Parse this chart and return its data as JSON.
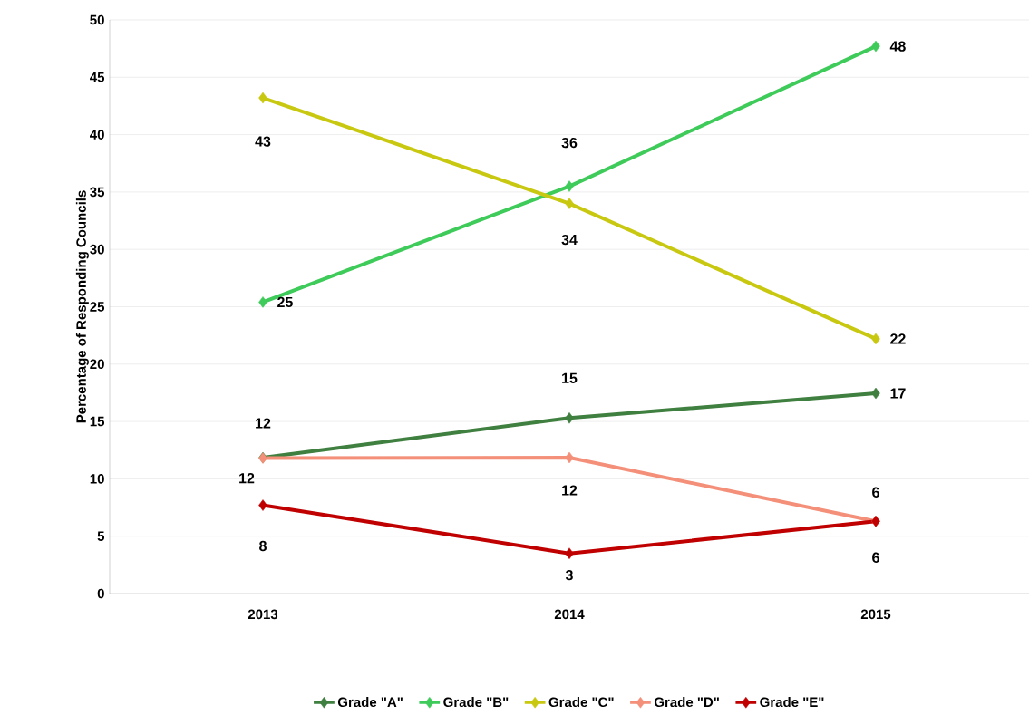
{
  "chart_data": {
    "type": "line",
    "ylabel": "Percentage of Responding Councils",
    "categories": [
      "2013",
      "2014",
      "2015"
    ],
    "series": [
      {
        "name": "Grade \"A\"",
        "color": "#3f7f3f",
        "values": [
          11.85,
          15.3,
          17.45
        ],
        "value_labels": [
          "12",
          "15",
          "17"
        ]
      },
      {
        "name": "Grade \"B\"",
        "color": "#3ecb5a",
        "values": [
          25.4,
          35.5,
          47.7
        ],
        "value_labels": [
          "25",
          "36",
          "48"
        ]
      },
      {
        "name": "Grade \"C\"",
        "color": "#c9c811",
        "values": [
          43.2,
          34.0,
          22.2
        ],
        "value_labels": [
          "43",
          "34",
          "22"
        ]
      },
      {
        "name": "Grade \"D\"",
        "color": "#f4907a",
        "values": [
          11.8,
          11.85,
          6.3
        ],
        "value_labels": [
          "12",
          "12",
          "6"
        ]
      },
      {
        "name": "Grade \"E\"",
        "color": "#c00000",
        "values": [
          7.7,
          3.5,
          6.3
        ],
        "value_labels": [
          "8",
          "3",
          "6"
        ]
      }
    ],
    "ylim": [
      0,
      50
    ],
    "yticks": [
      0,
      5,
      10,
      15,
      20,
      25,
      30,
      35,
      40,
      45,
      50
    ],
    "grid": "y",
    "legend": "bottom",
    "marker": "diamond",
    "line_style": "solid"
  }
}
